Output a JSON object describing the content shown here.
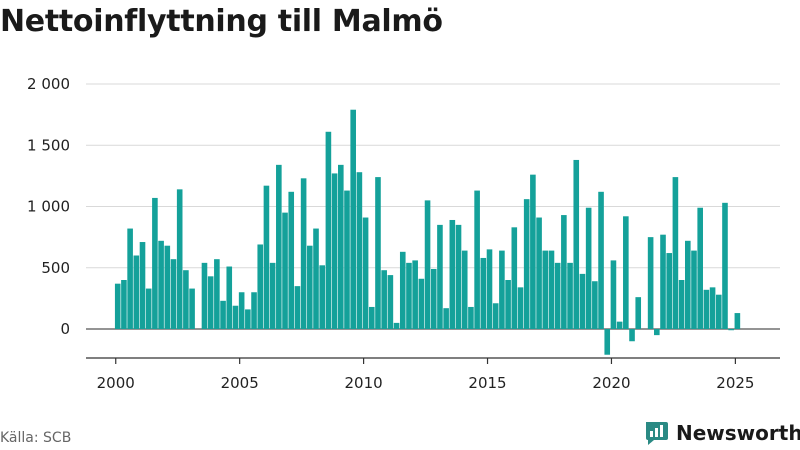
{
  "title": "Nettoinflyttning till Malmö",
  "source": "Källa: SCB",
  "brand": {
    "name": "Newsworthy",
    "icon": "bar-chart-logo-icon"
  },
  "colors": {
    "bar": "#14a19a",
    "grid": "#d9d9d9",
    "axis": "#333333",
    "brand": "#2a8a84"
  },
  "chart_data": {
    "type": "bar",
    "title": "Nettoinflyttning till Malmö",
    "xlabel": "",
    "ylabel": "",
    "xlim": [
      1998.8,
      2026.8
    ],
    "ylim": [
      -250,
      2000
    ],
    "yticks": [
      0,
      500,
      1000,
      1500,
      2000
    ],
    "ytick_labels": [
      "0",
      "500",
      "1 000",
      "1 500",
      "2 000"
    ],
    "xticks": [
      2000,
      2005,
      2010,
      2015,
      2020,
      2025
    ],
    "xtick_labels": [
      "2000",
      "2005",
      "2010",
      "2015",
      "2020",
      "2025"
    ],
    "grid": true,
    "x": [
      2000.08,
      2000.33,
      2000.58,
      2000.83,
      2001.08,
      2001.33,
      2001.58,
      2001.83,
      2002.08,
      2002.33,
      2002.58,
      2002.83,
      2003.08,
      2003.33,
      2003.58,
      2003.83,
      2004.08,
      2004.33,
      2004.58,
      2004.83,
      2005.08,
      2005.33,
      2005.58,
      2005.83,
      2006.08,
      2006.33,
      2006.58,
      2006.83,
      2007.08,
      2007.33,
      2007.58,
      2007.83,
      2008.08,
      2008.33,
      2008.58,
      2008.83,
      2009.08,
      2009.33,
      2009.58,
      2009.83,
      2010.08,
      2010.33,
      2010.58,
      2010.83,
      2011.08,
      2011.33,
      2011.58,
      2011.83,
      2012.08,
      2012.33,
      2012.58,
      2012.83,
      2013.08,
      2013.33,
      2013.58,
      2013.83,
      2014.08,
      2014.33,
      2014.58,
      2014.83,
      2015.08,
      2015.33,
      2015.58,
      2015.83,
      2016.08,
      2016.33,
      2016.58,
      2016.83,
      2017.08,
      2017.33,
      2017.58,
      2017.83,
      2018.08,
      2018.33,
      2018.58,
      2018.83,
      2019.08,
      2019.33,
      2019.58,
      2019.83,
      2020.08,
      2020.33,
      2020.58,
      2020.83,
      2021.08,
      2021.33,
      2021.58,
      2021.83,
      2022.08,
      2022.33,
      2022.58,
      2022.83,
      2023.08,
      2023.33,
      2023.58,
      2023.83,
      2024.08,
      2024.33,
      2024.58,
      2024.83,
      2025.08
    ],
    "values": [
      370,
      400,
      820,
      600,
      710,
      330,
      1070,
      720,
      680,
      570,
      1140,
      480,
      330,
      0,
      540,
      430,
      570,
      230,
      510,
      190,
      300,
      160,
      300,
      690,
      1170,
      540,
      1340,
      950,
      1120,
      350,
      1230,
      680,
      820,
      520,
      1610,
      1270,
      1340,
      1130,
      1790,
      1280,
      910,
      180,
      1240,
      480,
      440,
      50,
      630,
      540,
      560,
      410,
      1050,
      490,
      850,
      170,
      890,
      850,
      640,
      180,
      1130,
      580,
      650,
      210,
      640,
      400,
      830,
      340,
      1060,
      1260,
      910,
      640,
      640,
      540,
      930,
      540,
      1380,
      450,
      990,
      390,
      1120,
      -210,
      560,
      60,
      920,
      -100,
      260,
      0,
      750,
      -50,
      770,
      620,
      1240,
      400,
      720,
      640,
      990,
      320,
      340,
      280,
      1030,
      -10,
      130
    ]
  }
}
